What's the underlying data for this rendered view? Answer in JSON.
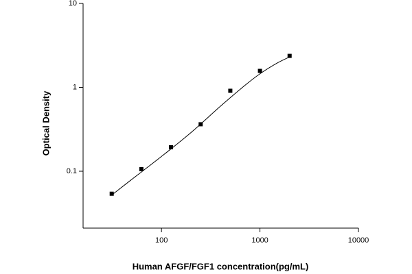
{
  "chart_data": {
    "type": "scatter",
    "x_label": "Human AFGF/FGF1 concentration(pg/mL)",
    "y_label": "Optical Density",
    "xlog": true,
    "ylog": true,
    "xlim": [
      16,
      10000
    ],
    "ylim": [
      0.021,
      10
    ],
    "xticks": [
      100,
      1000,
      10000
    ],
    "yticks": [
      0.1,
      1,
      10
    ],
    "series": [
      {
        "marker": "square",
        "color": "#000000",
        "x": [
          31.25,
          62.5,
          125,
          250,
          500,
          1000,
          2000
        ],
        "values": [
          0.054,
          0.106,
          0.193,
          0.363,
          0.91,
          1.57,
          2.37
        ]
      },
      {
        "marker": "line",
        "color": "#000000",
        "x": [
          31.25,
          50,
          100,
          200,
          400,
          700,
          1000,
          1500,
          2000
        ],
        "values": [
          0.052,
          0.08,
          0.15,
          0.29,
          0.6,
          1.05,
          1.45,
          1.95,
          2.3
        ]
      }
    ]
  }
}
